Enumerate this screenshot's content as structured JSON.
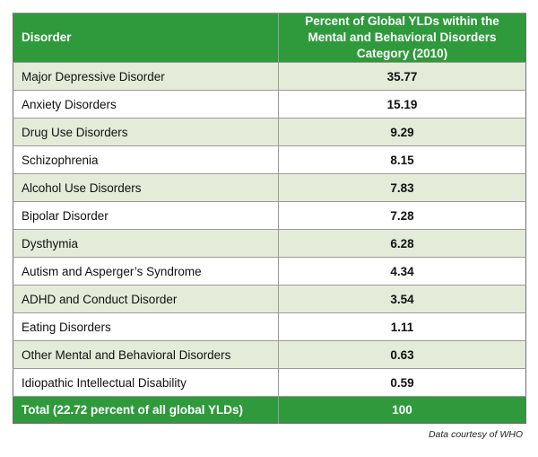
{
  "table": {
    "headers": {
      "disorder": "Disorder",
      "value": "Percent of Global YLDs within the Mental and Behavioral Disorders Category (2010)"
    },
    "rows": [
      {
        "disorder": "Major Depressive Disorder",
        "value": "35.77"
      },
      {
        "disorder": "Anxiety Disorders",
        "value": "15.19"
      },
      {
        "disorder": "Drug Use Disorders",
        "value": "9.29"
      },
      {
        "disorder": "Schizophrenia",
        "value": "8.15"
      },
      {
        "disorder": "Alcohol Use Disorders",
        "value": "7.83"
      },
      {
        "disorder": "Bipolar Disorder",
        "value": "7.28"
      },
      {
        "disorder": "Dysthymia",
        "value": "6.28"
      },
      {
        "disorder": "Autism and Asperger’s Syndrome",
        "value": "4.34"
      },
      {
        "disorder": "ADHD and Conduct Disorder",
        "value": "3.54"
      },
      {
        "disorder": "Eating Disorders",
        "value": "1.11"
      },
      {
        "disorder": "Other Mental and Behavioral Disorders",
        "value": "0.63"
      },
      {
        "disorder": "Idiopathic Intellectual Disability",
        "value": "0.59"
      }
    ],
    "total": {
      "disorder": "Total (22.72 percent of all global YLDs)",
      "value": "100"
    }
  },
  "credit": "Data courtesy of WHO",
  "colors": {
    "header_green": "#2e9a3c",
    "row_tint": "#e4ecd9"
  }
}
